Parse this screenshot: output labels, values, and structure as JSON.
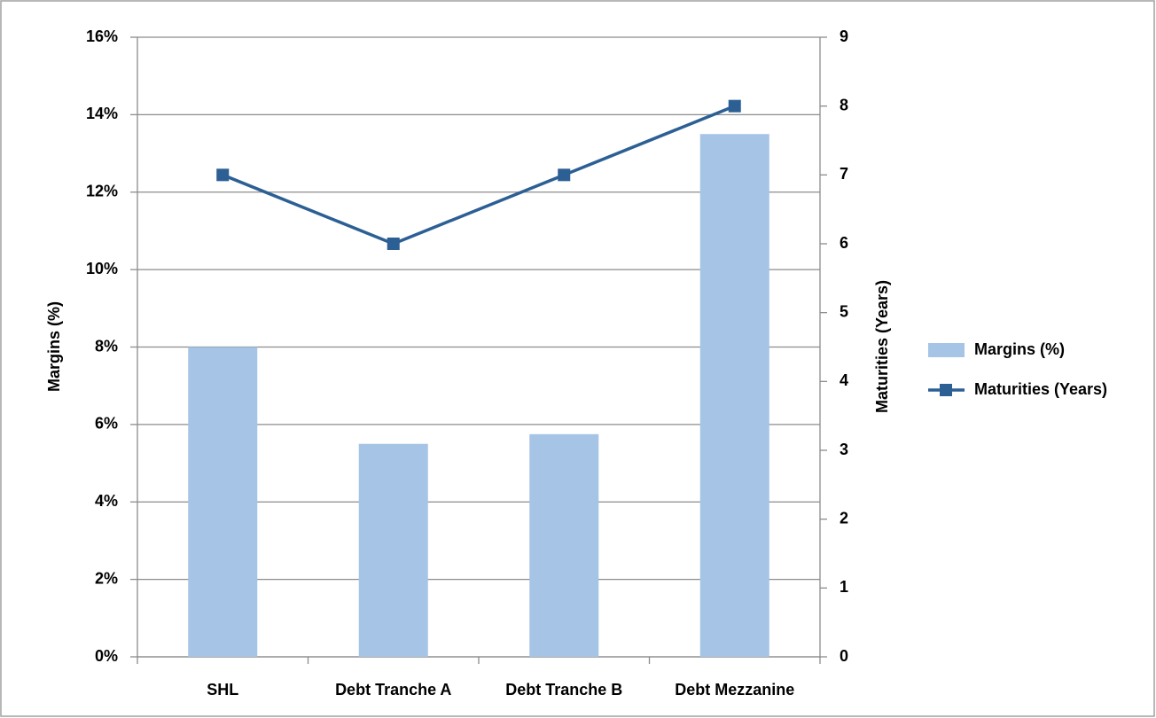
{
  "chart_data": {
    "type": "combo",
    "categories": [
      "SHL",
      "Debt Tranche A",
      "Debt Tranche B",
      "Debt Mezzanine"
    ],
    "ylabel": "Margins (%)",
    "y2label": "Maturities (Years)",
    "ylim": [
      0,
      16
    ],
    "yticks": [
      {
        "value": 0,
        "label": "0%"
      },
      {
        "value": 2,
        "label": "2%"
      },
      {
        "value": 4,
        "label": "4%"
      },
      {
        "value": 6,
        "label": "6%"
      },
      {
        "value": 8,
        "label": "8%"
      },
      {
        "value": 10,
        "label": "10%"
      },
      {
        "value": 12,
        "label": "12%"
      },
      {
        "value": 14,
        "label": "14%"
      },
      {
        "value": 16,
        "label": "16%"
      }
    ],
    "y2lim": [
      0,
      9
    ],
    "y2ticks": [
      0,
      1,
      2,
      3,
      4,
      5,
      6,
      7,
      8,
      9
    ],
    "grid": true,
    "legend": "right",
    "series": [
      {
        "name": "Margins (%)",
        "type": "bar",
        "color": "#a6c4e6",
        "values": [
          8,
          5.5,
          5.75,
          13.5
        ]
      },
      {
        "name": "Maturities (Years)",
        "type": "line",
        "axis": "y2",
        "color": "#2c5f94",
        "values": [
          7,
          6,
          7,
          8
        ]
      }
    ]
  }
}
